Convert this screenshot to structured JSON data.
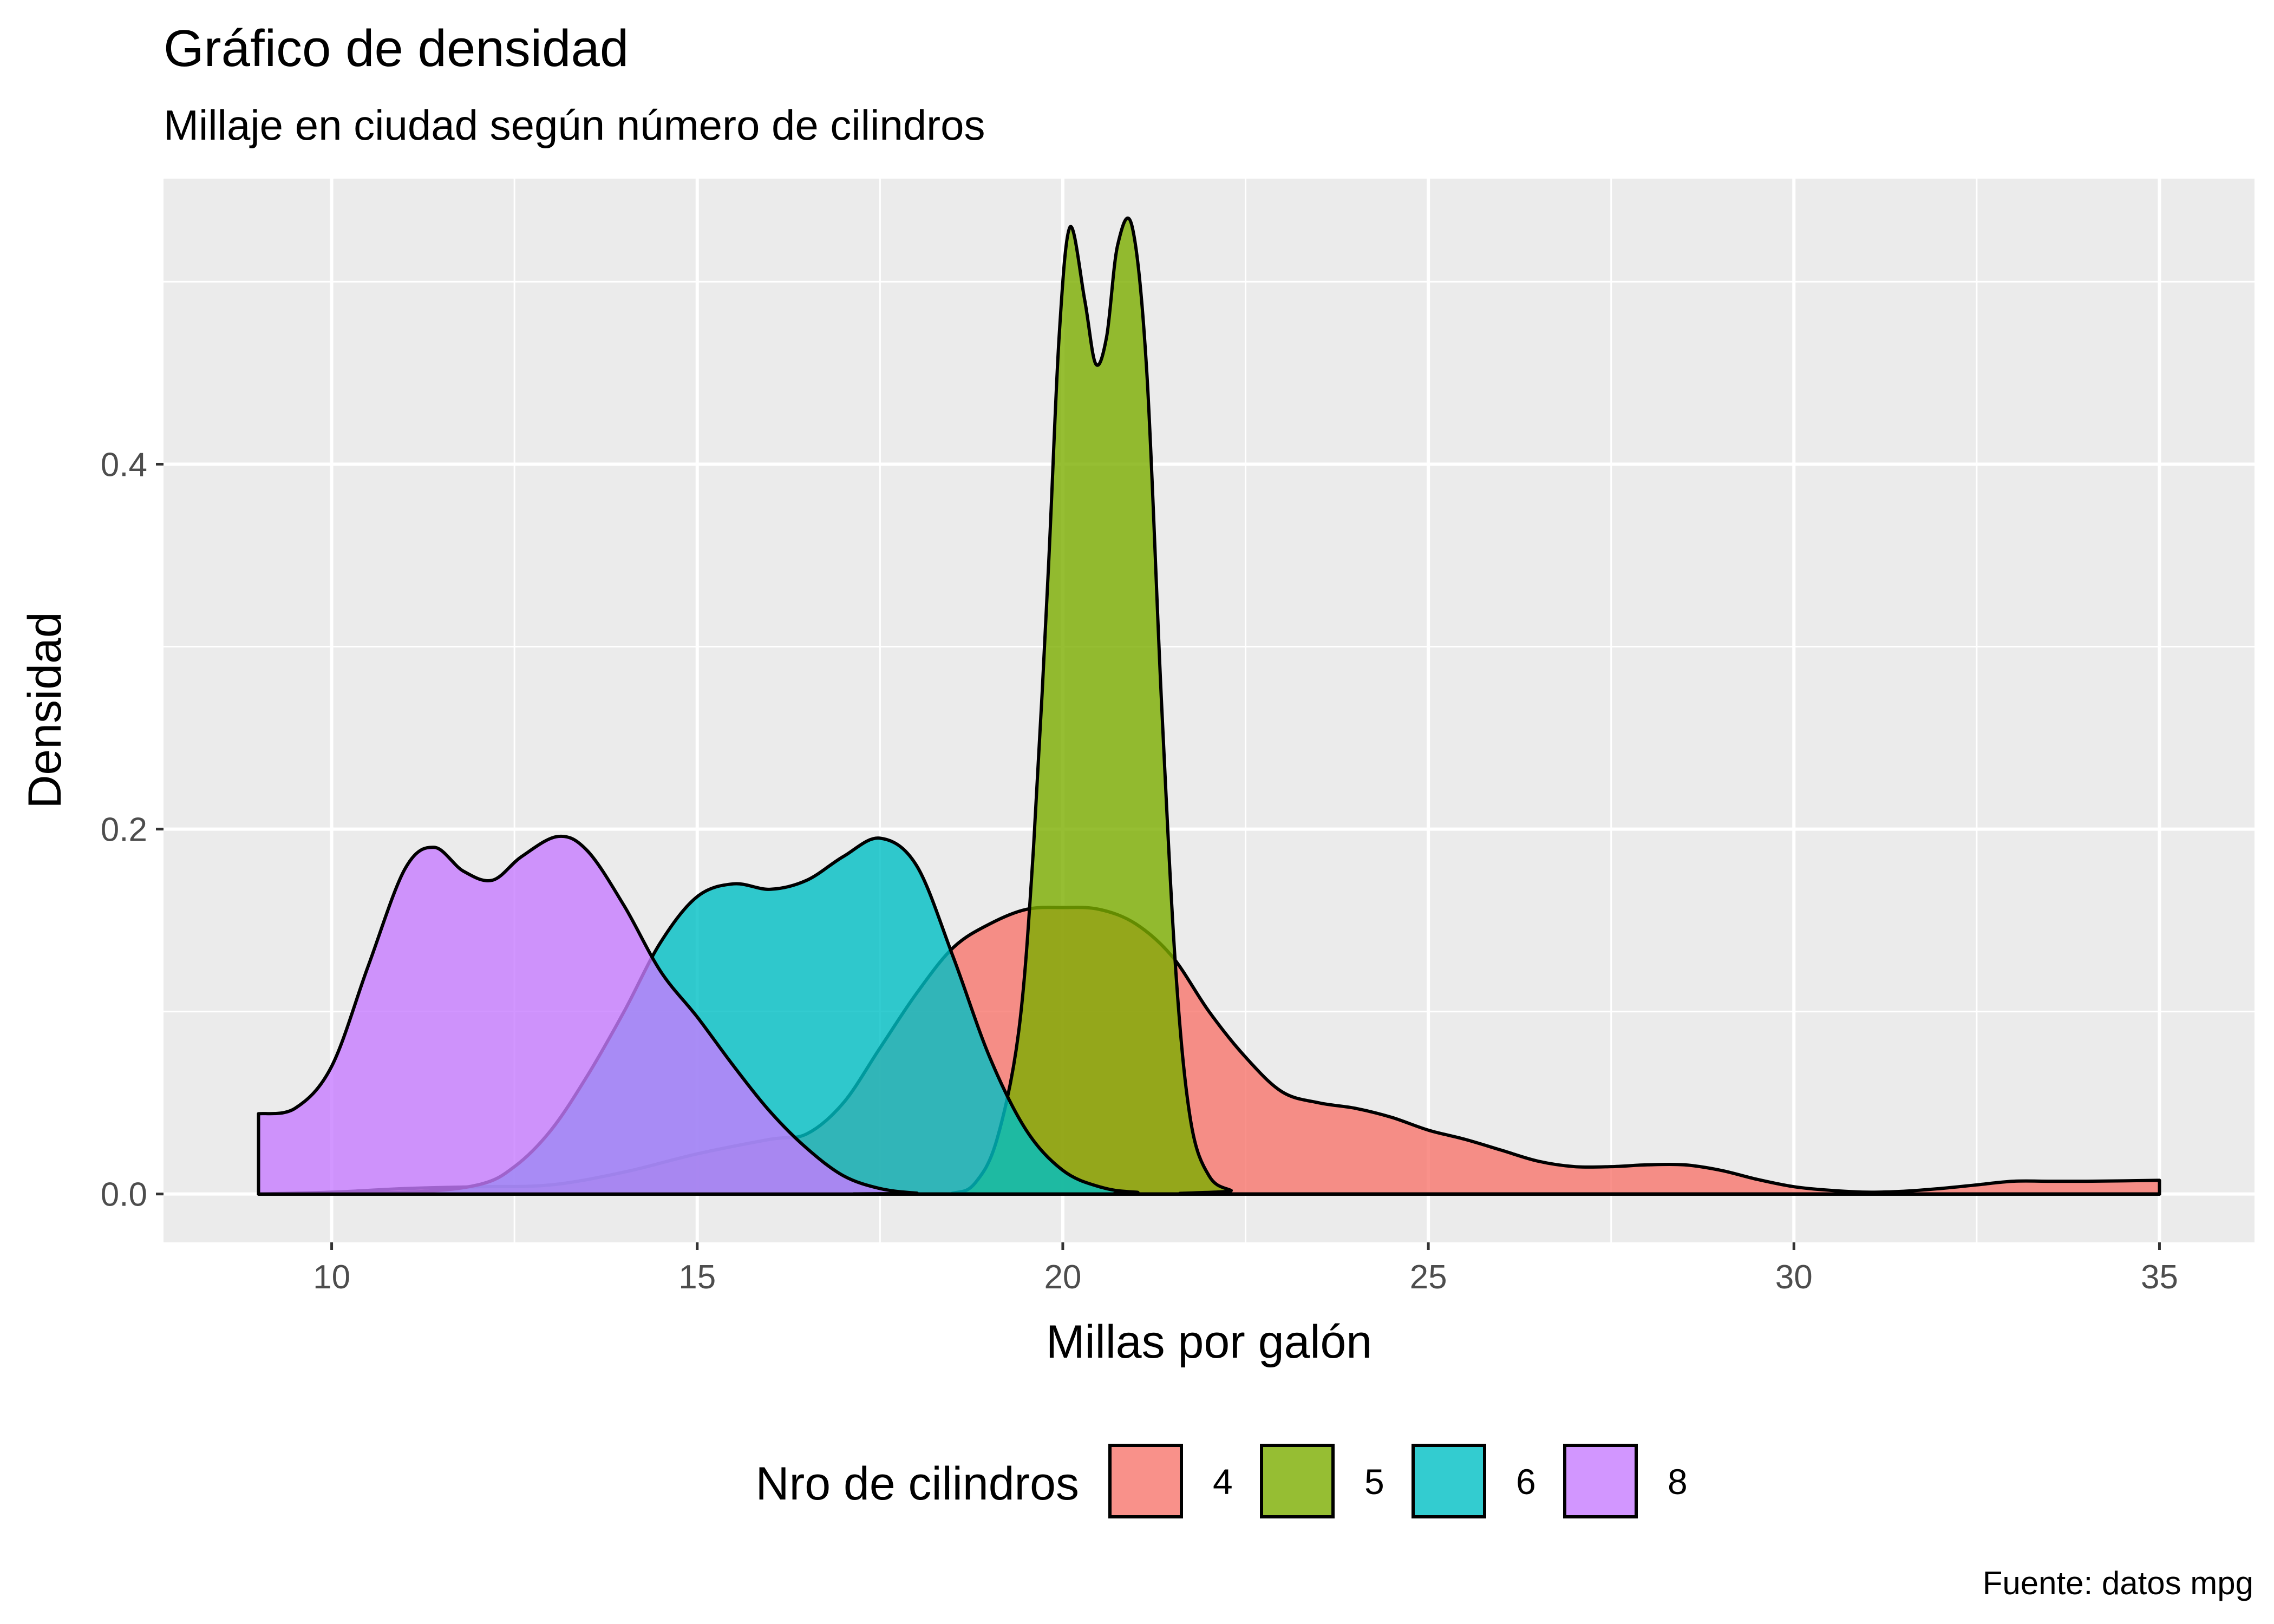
{
  "chart_data": {
    "type": "area",
    "chart_kind": "density",
    "title": "Gráfico de densidad",
    "subtitle": "Millaje en ciudad según número de cilindros",
    "xlabel": "Millas por galón",
    "ylabel": "Densidad",
    "caption": "Fuente: datos mpg",
    "xlim": [
      7.7,
      36.3
    ],
    "ylim": [
      -0.0265,
      0.5565
    ],
    "x_ticks": [
      10,
      15,
      20,
      25,
      30,
      35
    ],
    "x_tick_labels": [
      "10",
      "15",
      "20",
      "25",
      "30",
      "35"
    ],
    "y_ticks": [
      0.0,
      0.2,
      0.4
    ],
    "y_tick_labels": [
      "0.0",
      "0.2",
      "0.4"
    ],
    "grid": true,
    "legend": {
      "title": "Nro de cilindros",
      "position": "bottom"
    },
    "series": [
      {
        "name": "4",
        "color": "#F8766D",
        "points": [
          [
            9,
            0.0
          ],
          [
            10,
            0.001
          ],
          [
            11,
            0.003
          ],
          [
            12,
            0.004
          ],
          [
            13,
            0.005
          ],
          [
            14,
            0.012
          ],
          [
            15,
            0.022
          ],
          [
            16,
            0.03
          ],
          [
            16.5,
            0.033
          ],
          [
            17,
            0.05
          ],
          [
            17.5,
            0.08
          ],
          [
            18,
            0.11
          ],
          [
            18.5,
            0.135
          ],
          [
            19,
            0.148
          ],
          [
            19.5,
            0.156
          ],
          [
            20,
            0.157
          ],
          [
            20.5,
            0.156
          ],
          [
            21,
            0.148
          ],
          [
            21.5,
            0.13
          ],
          [
            22,
            0.1
          ],
          [
            22.5,
            0.075
          ],
          [
            23,
            0.056
          ],
          [
            23.5,
            0.05
          ],
          [
            24,
            0.047
          ],
          [
            24.5,
            0.042
          ],
          [
            25,
            0.035
          ],
          [
            25.5,
            0.03
          ],
          [
            26,
            0.024
          ],
          [
            26.5,
            0.018
          ],
          [
            27,
            0.015
          ],
          [
            27.5,
            0.015
          ],
          [
            28,
            0.016
          ],
          [
            28.5,
            0.016
          ],
          [
            29,
            0.013
          ],
          [
            29.5,
            0.008
          ],
          [
            30,
            0.004
          ],
          [
            30.5,
            0.002
          ],
          [
            31,
            0.001
          ],
          [
            31.5,
            0.0015
          ],
          [
            32,
            0.003
          ],
          [
            32.5,
            0.005
          ],
          [
            33,
            0.007
          ],
          [
            33.5,
            0.007
          ],
          [
            34,
            0.007
          ],
          [
            34.5,
            0.0072
          ],
          [
            35,
            0.0075
          ]
        ]
      },
      {
        "name": "5",
        "color": "#7CAE00",
        "points": [
          [
            9,
            0.0
          ],
          [
            18,
            0.0
          ],
          [
            18.5,
            0.0005
          ],
          [
            18.8,
            0.006
          ],
          [
            19.1,
            0.03
          ],
          [
            19.4,
            0.09
          ],
          [
            19.6,
            0.19
          ],
          [
            19.8,
            0.34
          ],
          [
            19.95,
            0.47
          ],
          [
            20.1,
            0.53
          ],
          [
            20.3,
            0.49
          ],
          [
            20.45,
            0.455
          ],
          [
            20.6,
            0.47
          ],
          [
            20.75,
            0.52
          ],
          [
            20.95,
            0.53
          ],
          [
            21.15,
            0.45
          ],
          [
            21.35,
            0.27
          ],
          [
            21.55,
            0.12
          ],
          [
            21.75,
            0.04
          ],
          [
            22,
            0.01
          ],
          [
            22.3,
            0.002
          ],
          [
            22.6,
            0.0
          ],
          [
            35,
            0.0
          ]
        ]
      },
      {
        "name": "6",
        "color": "#00BFC4",
        "points": [
          [
            9,
            0.0
          ],
          [
            11,
            0.001
          ],
          [
            12,
            0.005
          ],
          [
            12.5,
            0.015
          ],
          [
            13,
            0.035
          ],
          [
            13.5,
            0.065
          ],
          [
            14,
            0.1
          ],
          [
            14.5,
            0.138
          ],
          [
            15,
            0.163
          ],
          [
            15.5,
            0.17
          ],
          [
            16,
            0.167
          ],
          [
            16.5,
            0.172
          ],
          [
            17,
            0.185
          ],
          [
            17.5,
            0.195
          ],
          [
            18,
            0.18
          ],
          [
            18.5,
            0.13
          ],
          [
            19,
            0.075
          ],
          [
            19.5,
            0.035
          ],
          [
            20,
            0.013
          ],
          [
            20.5,
            0.004
          ],
          [
            21,
            0.001
          ],
          [
            22,
            0.0
          ],
          [
            35,
            0.0
          ]
        ]
      },
      {
        "name": "8",
        "color": "#C77CFF",
        "points": [
          [
            9,
            0.044
          ],
          [
            9.5,
            0.047
          ],
          [
            10,
            0.07
          ],
          [
            10.5,
            0.125
          ],
          [
            11,
            0.178
          ],
          [
            11.4,
            0.19
          ],
          [
            11.8,
            0.177
          ],
          [
            12.2,
            0.172
          ],
          [
            12.6,
            0.185
          ],
          [
            13.1,
            0.196
          ],
          [
            13.5,
            0.188
          ],
          [
            14,
            0.158
          ],
          [
            14.5,
            0.122
          ],
          [
            15,
            0.097
          ],
          [
            15.5,
            0.07
          ],
          [
            16,
            0.045
          ],
          [
            16.5,
            0.025
          ],
          [
            17,
            0.01
          ],
          [
            17.5,
            0.003
          ],
          [
            18,
            0.0005
          ],
          [
            18.5,
            0.0
          ],
          [
            35,
            0.0
          ]
        ]
      }
    ]
  }
}
